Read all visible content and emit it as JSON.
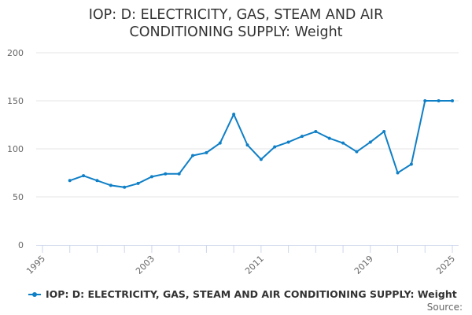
{
  "chart_data": {
    "type": "line",
    "title_line1": "IOP: D: ELECTRICITY, GAS, STEAM AND AIR",
    "title_line2": "CONDITIONING SUPPLY: Weight",
    "xlabel": "",
    "ylabel": "",
    "xlim": [
      1995,
      2025
    ],
    "ylim": [
      0,
      200
    ],
    "y_ticks": [
      0,
      50,
      100,
      150,
      200
    ],
    "x_tick_labels": [
      1995,
      2003,
      2011,
      2019,
      2025
    ],
    "grid": true,
    "legend_position": "bottom",
    "color": "#0f7fc6",
    "series": [
      {
        "name": "IOP: D: ELECTRICITY, GAS, STEAM AND AIR CONDITIONING SUPPLY: Weight",
        "x": [
          1997,
          1998,
          1999,
          2000,
          2001,
          2002,
          2003,
          2004,
          2005,
          2006,
          2007,
          2008,
          2009,
          2010,
          2011,
          2012,
          2013,
          2014,
          2015,
          2016,
          2017,
          2018,
          2019,
          2020,
          2021,
          2022,
          2023,
          2024,
          2025
        ],
        "values": [
          67,
          72,
          67,
          62,
          60,
          64,
          71,
          74,
          74,
          93,
          96,
          106,
          136,
          104,
          89,
          102,
          107,
          113,
          118,
          111,
          106,
          97,
          107,
          118,
          75,
          84,
          150,
          150,
          150
        ]
      }
    ]
  },
  "source_label": "Source:"
}
